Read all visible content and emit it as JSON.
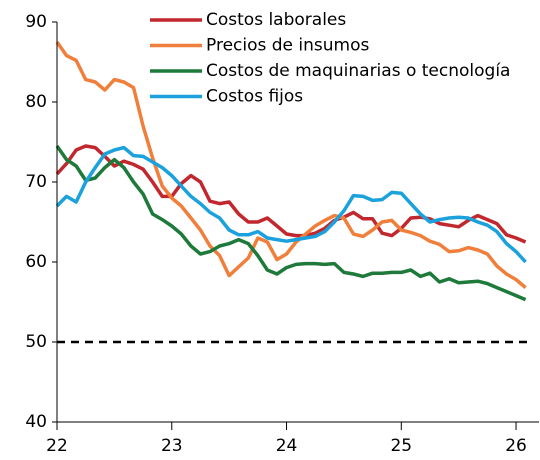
{
  "chart_data": {
    "type": "line",
    "x": [
      22,
      22.083,
      22.167,
      22.25,
      22.333,
      22.417,
      22.5,
      22.583,
      22.667,
      22.75,
      22.833,
      22.917,
      23,
      23.083,
      23.167,
      23.25,
      23.333,
      23.417,
      23.5,
      23.583,
      23.667,
      23.75,
      23.833,
      23.917,
      24,
      24.083,
      24.167,
      24.25,
      24.333,
      24.417,
      24.5,
      24.583,
      24.667,
      24.75,
      24.833,
      24.917,
      25,
      25.083,
      25.167,
      25.25,
      25.333,
      25.417,
      25.5,
      25.583,
      25.667,
      25.75,
      25.833,
      25.917,
      26,
      26.083
    ],
    "series": [
      {
        "name": "Costos laborales",
        "color": "#c1272d",
        "values": [
          71,
          72.3,
          74,
          74.5,
          74.3,
          73.2,
          72,
          72.6,
          72.2,
          71.6,
          70,
          68.2,
          68.2,
          69.8,
          70.8,
          70,
          67.6,
          67.3,
          67.5,
          66,
          65,
          65,
          65.5,
          64.5,
          63.5,
          63.3,
          63.3,
          63.6,
          64.2,
          65.2,
          65.6,
          66.2,
          65.4,
          65.4,
          63.6,
          63.3,
          64.2,
          65.5,
          65.6,
          65.4,
          64.8,
          64.6,
          64.4,
          65.2,
          65.8,
          65.3,
          64.8,
          63.4,
          63,
          62.5
        ]
      },
      {
        "name": "Precios de insumos",
        "color": "#f07f3c",
        "values": [
          87.5,
          85.8,
          85.2,
          82.8,
          82.5,
          81.5,
          82.8,
          82.5,
          81.8,
          77,
          73,
          69.5,
          68,
          67,
          65.5,
          64,
          62,
          60.8,
          58.3,
          59.4,
          60.5,
          63,
          62.5,
          60.3,
          61,
          62.5,
          63.5,
          64.5,
          65.2,
          65.8,
          65.5,
          63.5,
          63.2,
          64,
          65,
          65.2,
          64,
          63.7,
          63.3,
          62.6,
          62.2,
          61.3,
          61.4,
          61.8,
          61.5,
          61,
          59.5,
          58.5,
          57.8,
          56.8
        ]
      },
      {
        "name": "Costos de maquinarias o tecnología",
        "color": "#1e7a3a",
        "values": [
          74.5,
          72.8,
          72,
          70.2,
          70.5,
          71.8,
          72.8,
          71.8,
          70,
          68.5,
          66,
          65.3,
          64.5,
          63.5,
          62,
          61,
          61.3,
          62,
          62.3,
          62.8,
          62.3,
          60.8,
          59,
          58.5,
          59.3,
          59.7,
          59.8,
          59.8,
          59.7,
          59.8,
          58.7,
          58.5,
          58.2,
          58.6,
          58.6,
          58.7,
          58.7,
          59,
          58.2,
          58.6,
          57.5,
          57.9,
          57.4,
          57.5,
          57.6,
          57.3,
          56.8,
          56.3,
          55.8,
          55.3
        ]
      },
      {
        "name": "Costos fijos",
        "color": "#1ba1dc",
        "values": [
          67,
          68.2,
          67.5,
          70,
          71.8,
          73.5,
          74,
          74.3,
          73.3,
          73.2,
          72.5,
          71.8,
          70.8,
          69.5,
          68.2,
          67.3,
          66.2,
          65.5,
          64,
          63.4,
          63.4,
          63.8,
          63,
          62.8,
          62.6,
          62.8,
          63,
          63.2,
          63.8,
          65,
          66.4,
          68.3,
          68.2,
          67.7,
          67.8,
          68.7,
          68.6,
          67.3,
          66,
          65,
          65.3,
          65.5,
          65.6,
          65.5,
          65,
          64.6,
          63.8,
          62.3,
          61.3,
          60
        ]
      }
    ],
    "hline": 50,
    "xlim": [
      22,
      26.2
    ],
    "xticks": [
      22,
      23,
      24,
      25,
      26
    ],
    "ylim": [
      40,
      90
    ],
    "yticks": [
      40,
      50,
      60,
      70,
      80,
      90
    ],
    "legend": "top"
  }
}
